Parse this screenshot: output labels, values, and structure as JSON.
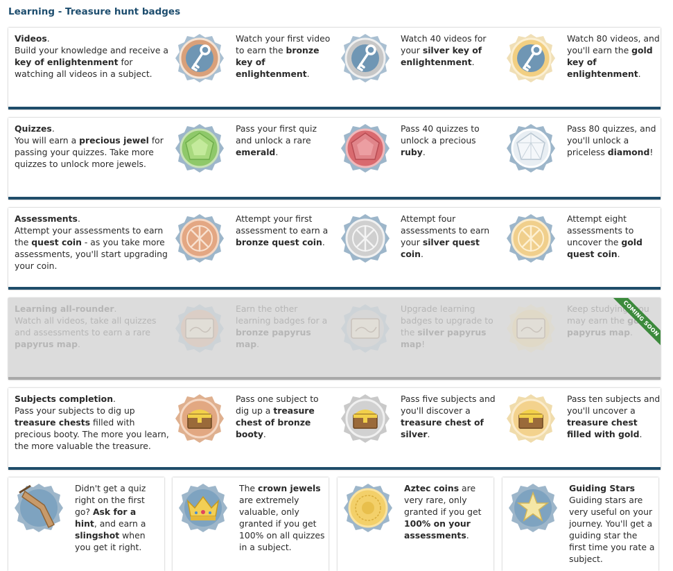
{
  "page_title": "Learning - Treasure hunt badges",
  "colors": {
    "bar": "#1f4d6a",
    "title": "#1d4d6e",
    "ribbon": "#3c8a3c",
    "bronze": "#d9a07a",
    "silver": "#c7c7c7",
    "gold": "#f2cf82",
    "badge_ring": "#9db6ca"
  },
  "rows": [
    {
      "intro_title": "Videos",
      "intro_text": "Build your knowledge and receive a <b>key of enlightenment</b> for watching all videos in a subject.",
      "tiers": [
        {
          "icon": "bronze-key-icon",
          "text": "Watch your first video to earn the <b>bronze key of enlightenment</b>."
        },
        {
          "icon": "silver-key-icon",
          "text": "Watch 40 videos for your <b>silver key of enlightenment</b>."
        },
        {
          "icon": "gold-key-icon",
          "text": "Watch 80 videos, and you'll earn the <b>gold key of enlightenment</b>."
        }
      ]
    },
    {
      "intro_title": "Quizzes",
      "intro_text": "You will earn a <b>precious jewel</b> for passing your quizzes. Take more quizzes to unlock more jewels.",
      "tiers": [
        {
          "icon": "emerald-icon",
          "text": "Pass your first quiz and unlock a rare <b>emerald</b>."
        },
        {
          "icon": "ruby-icon",
          "text": "Pass 40 quizzes to unlock a precious <b>ruby</b>."
        },
        {
          "icon": "diamond-icon",
          "text": "Pass 80 quizzes, and you'll unlock a priceless <b>diamond</b>!"
        }
      ]
    },
    {
      "intro_title": "Assessments",
      "intro_text": "Attempt your assessments to earn the <b>quest coin</b> - as you take more assessments, you'll start upgrading your coin.",
      "tiers": [
        {
          "icon": "bronze-quest-coin-icon",
          "text": "Attempt your first assessment to earn a <b>bronze quest coin</b>."
        },
        {
          "icon": "silver-quest-coin-icon",
          "text": "Attempt four assessments to earn your <b>silver quest coin</b>."
        },
        {
          "icon": "gold-quest-coin-icon",
          "text": "Attempt eight assessments to uncover the <b>gold quest coin</b>."
        }
      ]
    },
    {
      "intro_title": "Learning all-rounder",
      "intro_text": "Watch all videos, take all quizzes and assessments to earn a rare <b>papyrus map</b>.",
      "ribbon": "COMING SOON",
      "tiers": [
        {
          "icon": "bronze-papyrus-map-icon",
          "text": "Earn the other learning badges for a <b>bronze papyrus map</b>."
        },
        {
          "icon": "silver-papyrus-map-icon",
          "text": "Upgrade learning badges to upgrade to the <b>silver papyrus map</b>!"
        },
        {
          "icon": "gold-papyrus-map-icon",
          "text": "Keep studying, you may earn the <b>gold papyrus map</b>."
        }
      ]
    },
    {
      "intro_title": "Subjects completion",
      "intro_text": "Pass your subjects to dig up <b>treasure chests</b> filled with precious booty. The more you learn, the more valuable the treasure.",
      "tiers": [
        {
          "icon": "bronze-treasure-chest-icon",
          "text": "Pass one subject to dig up a <b>treasure chest of bronze booty</b>."
        },
        {
          "icon": "silver-treasure-chest-icon",
          "text": "Pass five subjects and you'll discover a <b>treasure chest of silver</b>."
        },
        {
          "icon": "gold-treasure-chest-icon",
          "text": "Pass ten subjects and you'll uncover a <b>treasure chest filled with gold</b>."
        }
      ]
    }
  ],
  "cards": [
    {
      "icon": "slingshot-icon",
      "text": "Didn't get a quiz right on the first go? <b>Ask for a hint</b>, and earn a <b>slingshot</b> when you get it right."
    },
    {
      "icon": "crown-icon",
      "text": "The <b>crown jewels</b> are extremely valuable, only granted if you get 100% on all quizzes in a subject."
    },
    {
      "icon": "aztec-coin-icon",
      "text": "<b>Aztec coins</b> are very rare, only granted if you get <b>100% on your assessments</b>."
    },
    {
      "icon": "guiding-star-icon",
      "text": "<b>Guiding Stars</b> Guiding stars are very useful on your journey. You'll get a guiding star the first time you rate a subject."
    }
  ]
}
